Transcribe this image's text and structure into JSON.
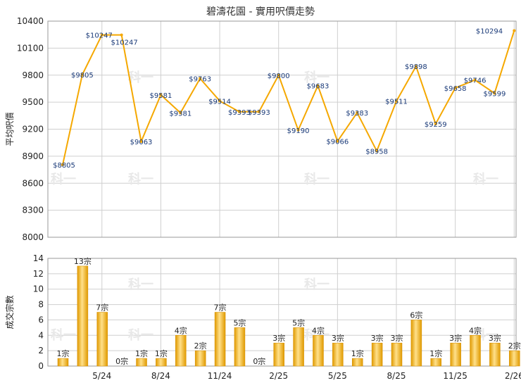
{
  "title": "碧濤花園 - 實用呎價走勢",
  "watermark": "科一",
  "colors": {
    "line": "#f5a800",
    "bar_light": "#ffe08a",
    "bar_dark": "#e09a00",
    "grid": "#cfcfcf"
  },
  "chart_data": [
    {
      "type": "line",
      "ylabel": "平均呎價",
      "ylim": [
        8000,
        10400
      ],
      "yticks": [
        8000,
        8300,
        8600,
        8900,
        9200,
        9500,
        9800,
        10100,
        10400
      ],
      "x_ticks": [
        "5/24",
        "8/24",
        "11/24",
        "2/25",
        "5/25",
        "8/25",
        "11/25",
        "2/26"
      ],
      "values": [
        8805,
        9805,
        10247,
        10247,
        9063,
        9581,
        9381,
        9763,
        9514,
        9393,
        9393,
        9800,
        9190,
        9683,
        9066,
        9383,
        8958,
        9511,
        9898,
        9259,
        9658,
        9746,
        9599,
        10294
      ],
      "labels": [
        "$8805",
        "$9805",
        "$10247",
        "$10247",
        "$9063",
        "$9581",
        "$9381",
        "$9763",
        "$9514",
        "$9393",
        "$9393",
        "$9800",
        "$9190",
        "$9683",
        "$9066",
        "$9383",
        "$8958",
        "$9511",
        "$9898",
        "$9259",
        "$9658",
        "$9746",
        "$9599",
        "$10294"
      ]
    },
    {
      "type": "bar",
      "ylabel": "成交宗數",
      "ylim": [
        0,
        14
      ],
      "yticks": [
        0,
        2,
        4,
        6,
        8,
        10,
        12,
        14
      ],
      "x_ticks": [
        "5/24",
        "8/24",
        "11/24",
        "2/25",
        "5/25",
        "8/25",
        "11/25",
        "2/26"
      ],
      "values": [
        1,
        13,
        7,
        0,
        1,
        1,
        4,
        2,
        7,
        5,
        0,
        3,
        5,
        4,
        3,
        1,
        3,
        3,
        6,
        1,
        3,
        4,
        3,
        2
      ],
      "labels": [
        "1宗",
        "13宗",
        "7宗",
        "0宗",
        "1宗",
        "1宗",
        "4宗",
        "2宗",
        "7宗",
        "5宗",
        "0宗",
        "3宗",
        "5宗",
        "4宗",
        "3宗",
        "1宗",
        "3宗",
        "3宗",
        "6宗",
        "1宗",
        "3宗",
        "4宗",
        "3宗",
        "2宗"
      ]
    }
  ]
}
